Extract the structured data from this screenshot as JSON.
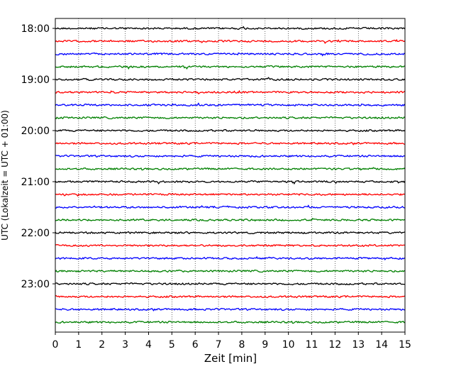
{
  "chart_data": {
    "type": "line",
    "title": "",
    "xlabel": "Zeit  [min]",
    "ylabel": "UTC (Lokalzeit = UTC + 01:00)",
    "xlim": [
      0,
      15
    ],
    "x_ticks": [
      "0",
      "1",
      "2",
      "3",
      "4",
      "5",
      "6",
      "7",
      "8",
      "9",
      "10",
      "11",
      "12",
      "13",
      "14",
      "15"
    ],
    "y_tick_labels": [
      "18:00",
      "19:00",
      "20:00",
      "21:00",
      "22:00",
      "23:00"
    ],
    "y_tick_hours": [
      18,
      19,
      20,
      21,
      22,
      23
    ],
    "trace_interval_minutes": 15,
    "trace_start": "18:00",
    "trace_end": "23:45",
    "trace_count": 24,
    "trace_color_cycle": [
      "#000000",
      "#ff0000",
      "#0000ff",
      "#008000"
    ],
    "grid": "vertical dotted lines at each minute",
    "legend": "none"
  }
}
